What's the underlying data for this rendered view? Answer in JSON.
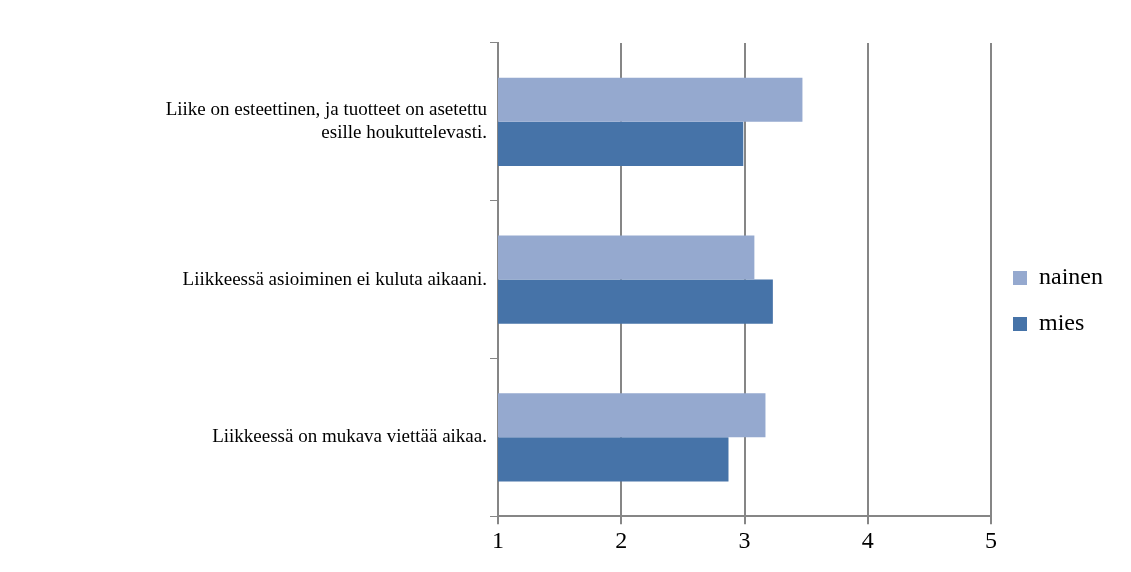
{
  "chart_data": {
    "type": "bar",
    "orientation": "horizontal",
    "categories": [
      "Liike on esteettinen, ja tuotteet on asetettu esille houkuttelevasti.",
      "Liikkeessä asioiminen ei kuluta aikaani.",
      "Liikkeessä on mukava viettää aikaa."
    ],
    "series": [
      {
        "name": "nainen",
        "color": "#95a9cf",
        "values": [
          3.47,
          3.08,
          3.17
        ]
      },
      {
        "name": "mies",
        "color": "#4673a8",
        "values": [
          2.99,
          3.23,
          2.87
        ]
      }
    ],
    "xlim": [
      1,
      5
    ],
    "xticks": [
      1,
      2,
      3,
      4,
      5
    ],
    "grid": "x",
    "legend": "right"
  }
}
